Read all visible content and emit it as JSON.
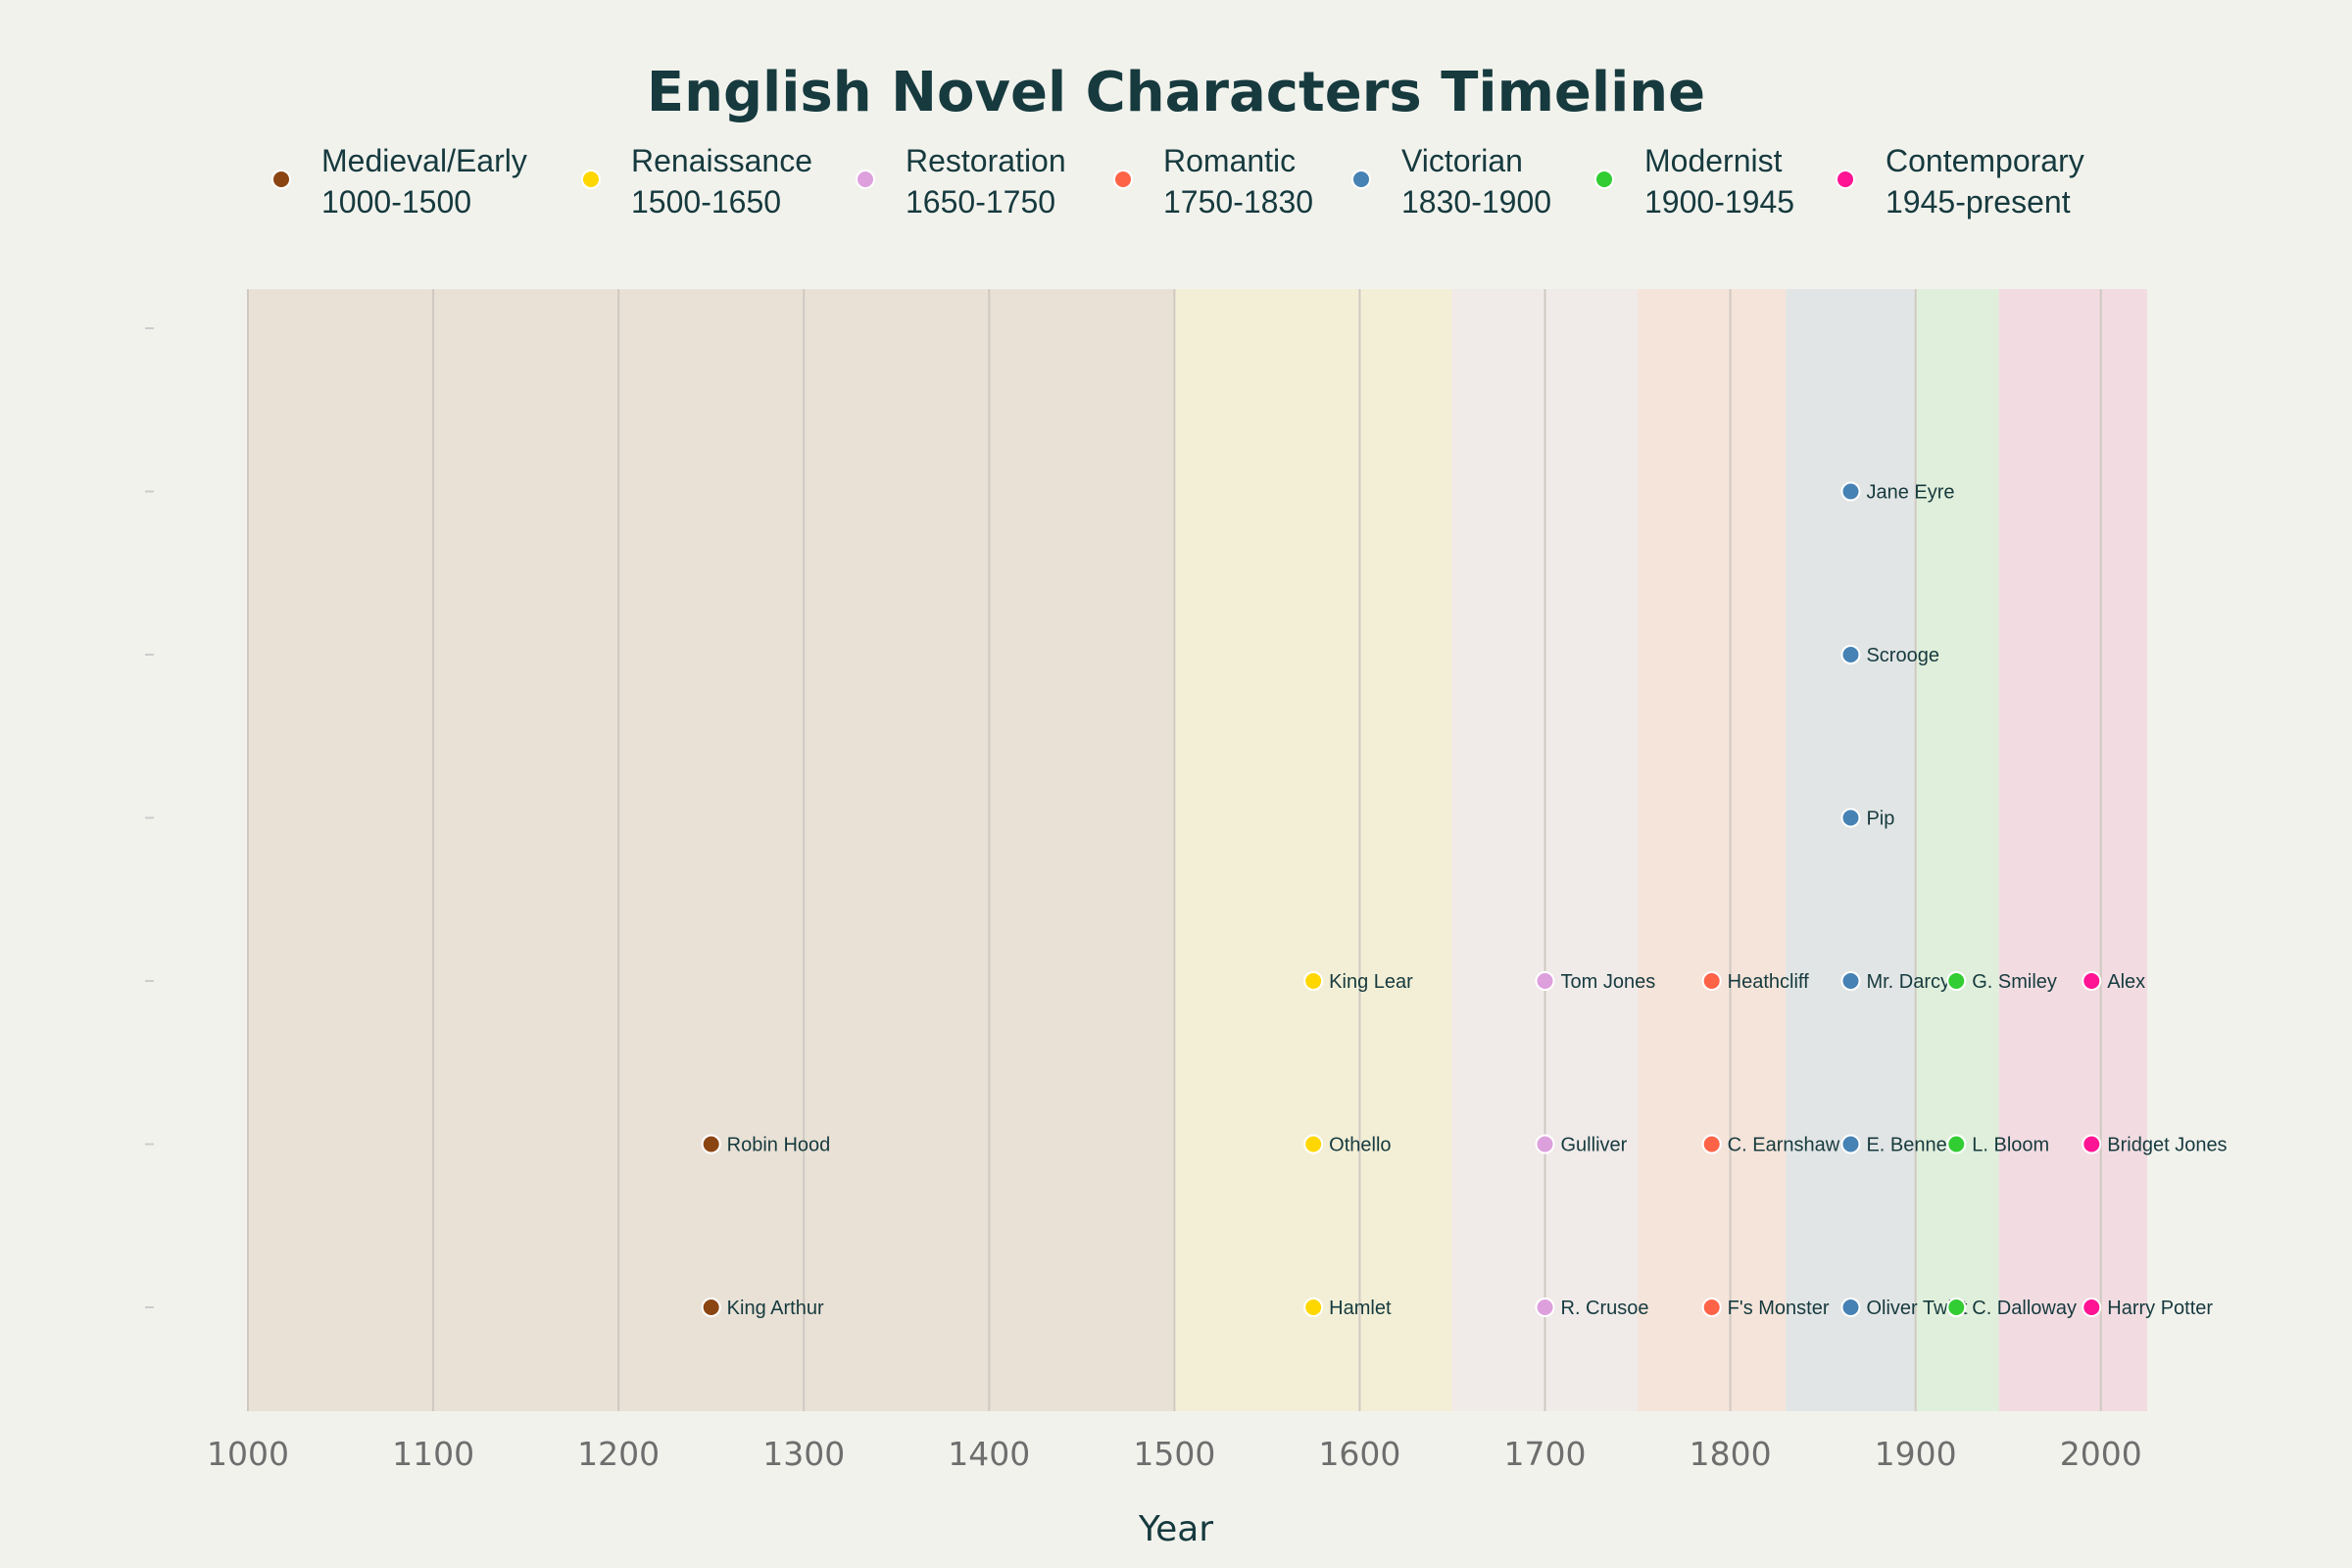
{
  "chart_data": {
    "type": "scatter",
    "title": "English Novel Characters Timeline",
    "xlabel": "Year",
    "ylabel": "",
    "xlim": [
      1000,
      2025
    ],
    "ylim": [
      -0.6,
      5.5
    ],
    "xticks": [
      1000,
      1100,
      1200,
      1300,
      1400,
      1500,
      1600,
      1700,
      1800,
      1900,
      2000
    ],
    "yticks": [
      0,
      1,
      2,
      3,
      4,
      5,
      6
    ],
    "grid": "vertical",
    "legend_position": "top",
    "periods": [
      {
        "name": "Medieval/Early",
        "range": "1000-1500",
        "start": 1000,
        "end": 1500,
        "color": "#8b4513",
        "band": "#e9e1d6"
      },
      {
        "name": "Renaissance",
        "range": "1500-1650",
        "start": 1500,
        "end": 1650,
        "color": "#ffd700",
        "band": "#f3efd6"
      },
      {
        "name": "Restoration",
        "range": "1650-1750",
        "start": 1650,
        "end": 1750,
        "color": "#dda0dd",
        "band": "#f0eae9"
      },
      {
        "name": "Romantic",
        "range": "1750-1830",
        "start": 1750,
        "end": 1830,
        "color": "#ff6347",
        "band": "#f5e4da"
      },
      {
        "name": "Victorian",
        "range": "1830-1900",
        "start": 1830,
        "end": 1900,
        "color": "#4682b4",
        "band": "#e2e5e5"
      },
      {
        "name": "Modernist",
        "range": "1900-1945",
        "start": 1900,
        "end": 1945,
        "color": "#32cd32",
        "band": "#e0efdb"
      },
      {
        "name": "Contemporary",
        "range": "1945-present",
        "start": 1945,
        "end": 2025,
        "color": "#ff1493",
        "band": "#f2dce1"
      }
    ],
    "series": [
      {
        "period": "Medieval/Early",
        "points": [
          {
            "x": 1250,
            "y": 0,
            "label": "King Arthur"
          },
          {
            "x": 1250,
            "y": 1,
            "label": "Robin Hood"
          }
        ]
      },
      {
        "period": "Renaissance",
        "points": [
          {
            "x": 1575,
            "y": 0,
            "label": "Hamlet"
          },
          {
            "x": 1575,
            "y": 1,
            "label": "Othello"
          },
          {
            "x": 1575,
            "y": 2,
            "label": "King Lear"
          }
        ]
      },
      {
        "period": "Restoration",
        "points": [
          {
            "x": 1700,
            "y": 0,
            "label": "R. Crusoe"
          },
          {
            "x": 1700,
            "y": 1,
            "label": "Gulliver"
          },
          {
            "x": 1700,
            "y": 2,
            "label": "Tom Jones"
          }
        ]
      },
      {
        "period": "Romantic",
        "points": [
          {
            "x": 1790,
            "y": 0,
            "label": "F's Monster"
          },
          {
            "x": 1790,
            "y": 1,
            "label": "C. Earnshaw"
          },
          {
            "x": 1790,
            "y": 2,
            "label": "Heathcliff"
          }
        ]
      },
      {
        "period": "Victorian",
        "points": [
          {
            "x": 1865,
            "y": 0,
            "label": "Oliver Twist"
          },
          {
            "x": 1865,
            "y": 1,
            "label": "E. Bennet"
          },
          {
            "x": 1865,
            "y": 2,
            "label": "Mr. Darcy"
          },
          {
            "x": 1865,
            "y": 3,
            "label": "Pip"
          },
          {
            "x": 1865,
            "y": 4,
            "label": "Scrooge"
          },
          {
            "x": 1865,
            "y": 5,
            "label": "Jane Eyre"
          }
        ]
      },
      {
        "period": "Modernist",
        "points": [
          {
            "x": 1922,
            "y": 0,
            "label": "C. Dalloway"
          },
          {
            "x": 1922,
            "y": 1,
            "label": "L. Bloom"
          },
          {
            "x": 1922,
            "y": 2,
            "label": "G. Smiley"
          }
        ]
      },
      {
        "period": "Contemporary",
        "points": [
          {
            "x": 1995,
            "y": 0,
            "label": "Harry Potter"
          },
          {
            "x": 1995,
            "y": 1,
            "label": "Bridget Jones"
          },
          {
            "x": 1995,
            "y": 2,
            "label": "Alex"
          }
        ]
      }
    ]
  }
}
